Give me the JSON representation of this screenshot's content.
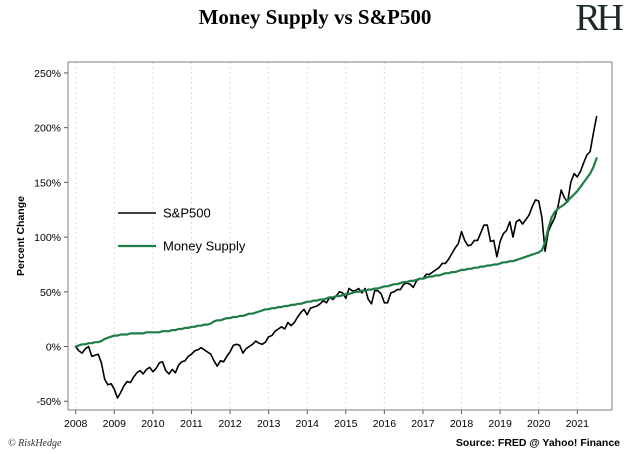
{
  "page": {
    "title": "Money Supply vs S&P500",
    "logo_text": "RH",
    "ylabel": "Percent Change",
    "footer_left": "© RiskHedge",
    "footer_right": "Source: FRED @ Yahoo! Finance"
  },
  "colors": {
    "sp500": "#000000",
    "money_supply": "#1e7e45",
    "plot_border": "#7f7f7f",
    "grid": "#dcdcdc",
    "axis": "#555555"
  },
  "chart_data": {
    "type": "line",
    "title": "Money Supply vs S&P500",
    "xlabel": "",
    "ylabel": "Percent Change",
    "grid": "vertical-dashed-faint",
    "legend_position": "inside-left",
    "x_start_year": 2008,
    "x_step_months": 1,
    "xlim": [
      2007.8,
      2021.9
    ],
    "ylim": [
      -58,
      260
    ],
    "x_ticks": [
      2008,
      2009,
      2010,
      2011,
      2012,
      2013,
      2014,
      2015,
      2016,
      2017,
      2018,
      2019,
      2020,
      2021
    ],
    "y_ticks": [
      -50,
      0,
      50,
      100,
      150,
      200,
      250
    ],
    "y_tick_suffix": "%",
    "series": [
      {
        "name": "S&P500",
        "color": "#000000",
        "width": 1.6,
        "values": [
          0,
          -4,
          -6,
          -2,
          0,
          -9,
          -8,
          -7,
          -15,
          -30,
          -35,
          -34,
          -39,
          -47,
          -42,
          -36,
          -32,
          -33,
          -28,
          -24,
          -22,
          -25,
          -21,
          -19,
          -23,
          -20,
          -15,
          -14,
          -22,
          -25,
          -21,
          -24,
          -17,
          -14,
          -13,
          -9,
          -7,
          -4,
          -3,
          -1,
          -3,
          -5,
          -7,
          -13,
          -18,
          -13,
          -14,
          -9,
          -5,
          1,
          2,
          1,
          -6,
          -2,
          0,
          2,
          5,
          3,
          2,
          4,
          9,
          10,
          14,
          16,
          18,
          16,
          22,
          19,
          22,
          27,
          31,
          34,
          29,
          35,
          36,
          37,
          39,
          42,
          40,
          45,
          43,
          46,
          50,
          49,
          44,
          53,
          51,
          51,
          53,
          49,
          53,
          43,
          39,
          51,
          51,
          48,
          40,
          40,
          49,
          50,
          52,
          52,
          57,
          58,
          57,
          54,
          60,
          62,
          62,
          66,
          66,
          68,
          70,
          72,
          76,
          76,
          80,
          85,
          90,
          94,
          105,
          97,
          92,
          93,
          97,
          97,
          104,
          111,
          111,
          96,
          97,
          82,
          96,
          103,
          106,
          114,
          100,
          114,
          116,
          112,
          116,
          120,
          128,
          134,
          133,
          118,
          87,
          105,
          112,
          118,
          128,
          143,
          136,
          132,
          150,
          158,
          155,
          160,
          168,
          175,
          178,
          195,
          210
        ]
      },
      {
        "name": "Money Supply",
        "color": "#1e7e45",
        "width": 2.2,
        "values": [
          0,
          1,
          2,
          2,
          3,
          3,
          4,
          4,
          5,
          7,
          8,
          9,
          10,
          10,
          11,
          11,
          11,
          12,
          12,
          12,
          12,
          12,
          13,
          13,
          13,
          13,
          13,
          14,
          14,
          14,
          15,
          15,
          16,
          16,
          17,
          17,
          18,
          18,
          19,
          19,
          20,
          20,
          21,
          23,
          24,
          24,
          25,
          26,
          26,
          27,
          27,
          28,
          28,
          29,
          30,
          30,
          31,
          32,
          33,
          34,
          34,
          35,
          35,
          36,
          36,
          37,
          37,
          38,
          38,
          39,
          39,
          40,
          41,
          41,
          42,
          42,
          43,
          43,
          44,
          45,
          45,
          46,
          46,
          47,
          48,
          48,
          49,
          50,
          50,
          51,
          51,
          52,
          52,
          53,
          53,
          54,
          55,
          55,
          56,
          57,
          57,
          58,
          59,
          59,
          60,
          60,
          61,
          62,
          62,
          63,
          64,
          64,
          65,
          65,
          66,
          67,
          67,
          68,
          68,
          69,
          70,
          70,
          71,
          71,
          72,
          72,
          73,
          73,
          74,
          74,
          75,
          75,
          76,
          77,
          77,
          78,
          78,
          79,
          80,
          81,
          82,
          83,
          84,
          85,
          86,
          88,
          95,
          108,
          118,
          123,
          126,
          128,
          130,
          133,
          136,
          139,
          142,
          146,
          150,
          154,
          158,
          164,
          172
        ]
      }
    ]
  }
}
